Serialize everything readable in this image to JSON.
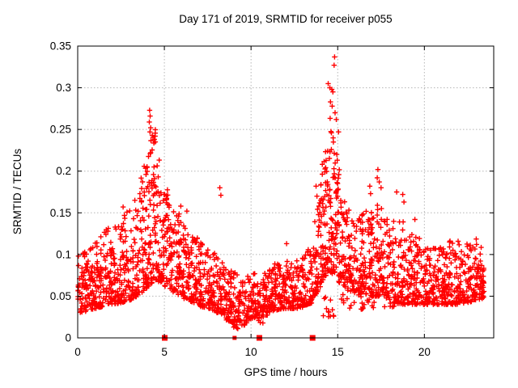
{
  "chart_data": {
    "type": "scatter",
    "title": "Day 171 of 2019, SRMTID for receiver p055",
    "xlabel": "GPS time / hours",
    "ylabel": "SRMTID / TECUs",
    "xlim": [
      0,
      24
    ],
    "ylim": [
      0,
      0.35
    ],
    "xticks": [
      0,
      5,
      10,
      15,
      20
    ],
    "xtick_labels": [
      "0",
      "5",
      "10",
      "15",
      "20"
    ],
    "yticks": [
      0,
      0.05,
      0.1,
      0.15,
      0.2,
      0.25,
      0.3,
      0.35
    ],
    "ytick_labels": [
      "0",
      "0.05",
      "0.1",
      "0.15",
      "0.2",
      "0.25",
      "0.3",
      "0.35"
    ],
    "grid": true,
    "legend": "none",
    "marker": "plus",
    "marker_color": "#ff0000",
    "zero_marker_shape": "filled-square",
    "grid_color": "#b5b5b5",
    "axis_color": "#000000",
    "background_color": "#ffffff",
    "seed": 20190171,
    "scatter_profile": {
      "note": "Dense noisy scatter (~2500 pts). Segments: [x0,x1,count,ylo_at_x0,ylo_at_x1,yhi_at_x0,yhi_at_x1]; points cluster toward ylo with skew exponent.",
      "skew": 1.8,
      "segments": [
        [
          0.0,
          0.5,
          55,
          0.03,
          0.032,
          0.1,
          0.105
        ],
        [
          0.5,
          1.0,
          55,
          0.032,
          0.035,
          0.105,
          0.115
        ],
        [
          1.0,
          1.5,
          55,
          0.035,
          0.038,
          0.115,
          0.128
        ],
        [
          1.5,
          2.0,
          55,
          0.038,
          0.04,
          0.128,
          0.135
        ],
        [
          2.0,
          2.5,
          55,
          0.04,
          0.042,
          0.135,
          0.145
        ],
        [
          2.5,
          3.0,
          55,
          0.042,
          0.045,
          0.145,
          0.155
        ],
        [
          3.0,
          3.5,
          55,
          0.045,
          0.05,
          0.155,
          0.175
        ],
        [
          3.5,
          4.0,
          60,
          0.05,
          0.06,
          0.175,
          0.23
        ],
        [
          4.0,
          4.5,
          70,
          0.06,
          0.07,
          0.23,
          0.258
        ],
        [
          4.5,
          5.0,
          60,
          0.068,
          0.065,
          0.24,
          0.19
        ],
        [
          5.0,
          5.5,
          55,
          0.062,
          0.058,
          0.185,
          0.165
        ],
        [
          5.5,
          6.0,
          55,
          0.055,
          0.05,
          0.16,
          0.145
        ],
        [
          6.0,
          6.5,
          55,
          0.048,
          0.045,
          0.14,
          0.13
        ],
        [
          6.5,
          7.0,
          55,
          0.044,
          0.04,
          0.128,
          0.12
        ],
        [
          7.0,
          7.5,
          55,
          0.038,
          0.036,
          0.118,
          0.112
        ],
        [
          7.5,
          8.0,
          55,
          0.035,
          0.032,
          0.11,
          0.1
        ],
        [
          8.0,
          8.5,
          55,
          0.03,
          0.028,
          0.098,
          0.092
        ],
        [
          8.5,
          9.0,
          55,
          0.022,
          0.018,
          0.09,
          0.085
        ],
        [
          9.0,
          9.4,
          40,
          0.012,
          0.01,
          0.082,
          0.07
        ],
        [
          9.4,
          9.8,
          30,
          0.012,
          0.018,
          0.068,
          0.072
        ],
        [
          9.8,
          10.4,
          60,
          0.022,
          0.025,
          0.075,
          0.078
        ],
        [
          10.4,
          10.7,
          20,
          0.015,
          0.018,
          0.07,
          0.072
        ],
        [
          10.7,
          11.2,
          55,
          0.025,
          0.03,
          0.08,
          0.085
        ],
        [
          11.2,
          11.8,
          60,
          0.032,
          0.035,
          0.088,
          0.092
        ],
        [
          11.8,
          12.4,
          60,
          0.035,
          0.035,
          0.1,
          0.096
        ],
        [
          12.4,
          13.0,
          60,
          0.035,
          0.036,
          0.094,
          0.098
        ],
        [
          13.0,
          13.5,
          55,
          0.038,
          0.042,
          0.1,
          0.115
        ],
        [
          13.5,
          14.0,
          55,
          0.045,
          0.06,
          0.12,
          0.185
        ],
        [
          14.0,
          14.5,
          75,
          0.065,
          0.08,
          0.2,
          0.26
        ],
        [
          14.5,
          15.0,
          75,
          0.08,
          0.072,
          0.27,
          0.23
        ],
        [
          14.0,
          15.0,
          12,
          0.02,
          0.025,
          0.06,
          0.055
        ],
        [
          15.0,
          15.5,
          55,
          0.068,
          0.06,
          0.21,
          0.17
        ],
        [
          15.5,
          16.0,
          55,
          0.058,
          0.052,
          0.165,
          0.14
        ],
        [
          15.2,
          16.6,
          15,
          0.03,
          0.035,
          0.06,
          0.06
        ],
        [
          16.0,
          16.5,
          55,
          0.05,
          0.052,
          0.138,
          0.15
        ],
        [
          16.5,
          17.0,
          55,
          0.052,
          0.05,
          0.16,
          0.15
        ],
        [
          16.6,
          18.6,
          15,
          0.035,
          0.038,
          0.055,
          0.05
        ],
        [
          17.0,
          17.6,
          60,
          0.05,
          0.05,
          0.155,
          0.165
        ],
        [
          17.6,
          18.2,
          60,
          0.048,
          0.045,
          0.15,
          0.135
        ],
        [
          18.2,
          18.8,
          60,
          0.042,
          0.04,
          0.14,
          0.145
        ],
        [
          18.8,
          19.4,
          60,
          0.04,
          0.04,
          0.135,
          0.125
        ],
        [
          19.4,
          20.0,
          60,
          0.04,
          0.04,
          0.125,
          0.115
        ],
        [
          20.0,
          20.6,
          60,
          0.04,
          0.04,
          0.112,
          0.108
        ],
        [
          20.6,
          21.2,
          60,
          0.04,
          0.04,
          0.11,
          0.112
        ],
        [
          21.2,
          21.8,
          60,
          0.04,
          0.04,
          0.115,
          0.118
        ],
        [
          21.8,
          22.4,
          60,
          0.04,
          0.042,
          0.118,
          0.112
        ],
        [
          22.4,
          23.0,
          60,
          0.042,
          0.045,
          0.115,
          0.12
        ],
        [
          23.0,
          23.45,
          55,
          0.045,
          0.048,
          0.118,
          0.11
        ]
      ]
    },
    "peak_points": [
      [
        4.15,
        0.273
      ],
      [
        4.18,
        0.266
      ],
      [
        4.13,
        0.259
      ],
      [
        4.21,
        0.252
      ],
      [
        4.17,
        0.247
      ],
      [
        4.3,
        0.243
      ],
      [
        4.42,
        0.238
      ],
      [
        14.82,
        0.337
      ],
      [
        14.79,
        0.327
      ],
      [
        14.45,
        0.305
      ],
      [
        14.55,
        0.3
      ],
      [
        14.66,
        0.298
      ],
      [
        14.72,
        0.295
      ],
      [
        14.58,
        0.283
      ],
      [
        14.68,
        0.278
      ],
      [
        14.85,
        0.27
      ],
      [
        14.92,
        0.262
      ],
      [
        15.05,
        0.247
      ],
      [
        13.75,
        0.182
      ],
      [
        13.8,
        0.17
      ],
      [
        8.2,
        0.18
      ],
      [
        8.26,
        0.171
      ],
      [
        17.32,
        0.202
      ],
      [
        17.28,
        0.192
      ],
      [
        17.4,
        0.187
      ],
      [
        17.5,
        0.18
      ],
      [
        16.85,
        0.182
      ],
      [
        16.9,
        0.173
      ],
      [
        18.4,
        0.175
      ],
      [
        18.75,
        0.172
      ],
      [
        18.82,
        0.163
      ],
      [
        19.45,
        0.142
      ],
      [
        12.05,
        0.113
      ],
      [
        5.95,
        0.158
      ],
      [
        6.3,
        0.152
      ],
      [
        2.62,
        0.157
      ]
    ],
    "zero_markers": [
      {
        "x": 5.02,
        "size": 7
      },
      {
        "x": 9.05,
        "size": 5
      },
      {
        "x": 10.48,
        "size": 7
      },
      {
        "x": 13.55,
        "size": 7
      }
    ]
  }
}
